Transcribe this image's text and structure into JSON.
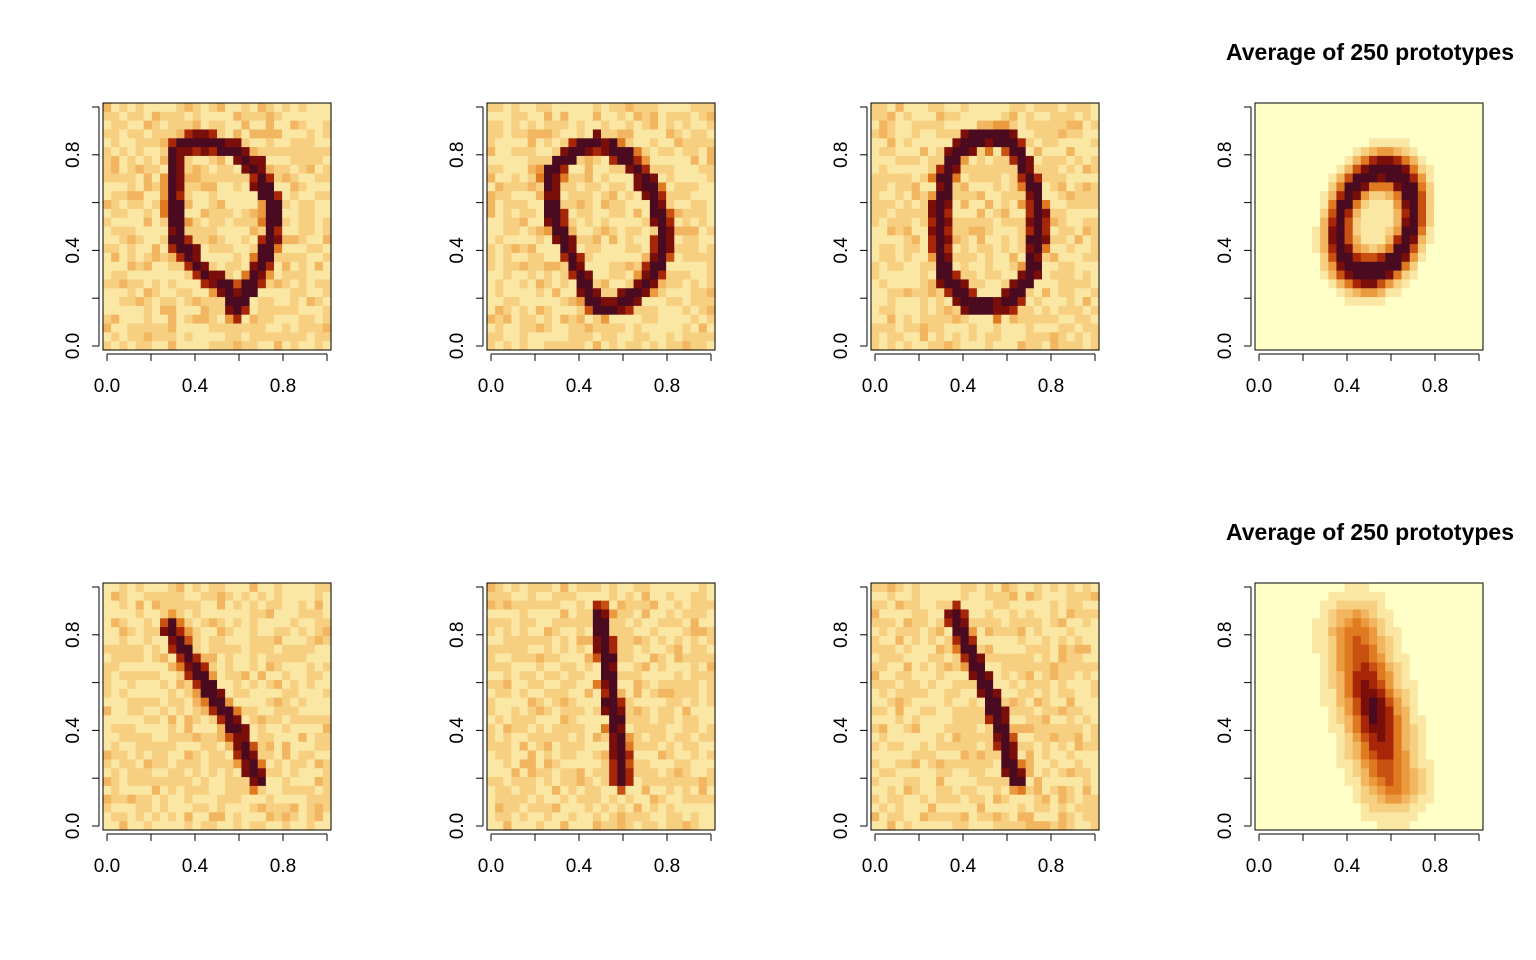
{
  "figure": {
    "palette": [
      "#FFFFC8",
      "#FBE7A4",
      "#F7CF80",
      "#F2B560",
      "#EC9A3E",
      "#E07A21",
      "#C85010",
      "#A82608",
      "#7A0E0A",
      "#4A0A20"
    ]
  },
  "chart_data": [
    {
      "id": "r1c1",
      "type": "heatmap",
      "title": "",
      "digit": "0",
      "shape": "loop",
      "smooth": false,
      "xlim": [
        0,
        1
      ],
      "ylim": [
        0,
        1
      ],
      "xticks": [
        "0.0",
        "0.4",
        "0.8"
      ],
      "yticks": [
        "0.0",
        "0.4",
        "0.8"
      ],
      "stroke": [
        [
          0.32,
          0.82
        ],
        [
          0.42,
          0.85
        ],
        [
          0.55,
          0.82
        ],
        [
          0.66,
          0.75
        ],
        [
          0.74,
          0.6
        ],
        [
          0.74,
          0.47
        ],
        [
          0.7,
          0.35
        ],
        [
          0.64,
          0.24
        ],
        [
          0.58,
          0.16
        ],
        [
          0.58,
          0.22
        ],
        [
          0.54,
          0.26
        ],
        [
          0.46,
          0.3
        ],
        [
          0.4,
          0.36
        ],
        [
          0.33,
          0.44
        ],
        [
          0.31,
          0.6
        ],
        [
          0.32,
          0.82
        ]
      ]
    },
    {
      "id": "r1c2",
      "type": "heatmap",
      "title": "",
      "digit": "0",
      "shape": "loop",
      "smooth": false,
      "xlim": [
        0,
        1
      ],
      "ylim": [
        0,
        1
      ],
      "xticks": [
        "0.0",
        "0.4",
        "0.8"
      ],
      "yticks": [
        "0.0",
        "0.4",
        "0.8"
      ],
      "stroke": [
        [
          0.36,
          0.8
        ],
        [
          0.48,
          0.84
        ],
        [
          0.62,
          0.78
        ],
        [
          0.72,
          0.65
        ],
        [
          0.78,
          0.5
        ],
        [
          0.76,
          0.36
        ],
        [
          0.68,
          0.24
        ],
        [
          0.56,
          0.17
        ],
        [
          0.48,
          0.18
        ],
        [
          0.41,
          0.3
        ],
        [
          0.34,
          0.44
        ],
        [
          0.28,
          0.6
        ],
        [
          0.28,
          0.7
        ],
        [
          0.36,
          0.8
        ]
      ]
    },
    {
      "id": "r1c3",
      "type": "heatmap",
      "title": "",
      "digit": "0",
      "shape": "loop",
      "smooth": false,
      "xlim": [
        0,
        1
      ],
      "ylim": [
        0,
        1
      ],
      "xticks": [
        "0.0",
        "0.4",
        "0.8"
      ],
      "yticks": [
        "0.0",
        "0.4",
        "0.8"
      ],
      "stroke": [
        [
          0.4,
          0.84
        ],
        [
          0.6,
          0.86
        ],
        [
          0.7,
          0.7
        ],
        [
          0.74,
          0.5
        ],
        [
          0.7,
          0.3
        ],
        [
          0.58,
          0.17
        ],
        [
          0.44,
          0.18
        ],
        [
          0.32,
          0.3
        ],
        [
          0.3,
          0.5
        ],
        [
          0.32,
          0.7
        ],
        [
          0.4,
          0.84
        ]
      ]
    },
    {
      "id": "r1c4",
      "type": "heatmap",
      "title": "Average of 250 prototypes",
      "digit": "0",
      "shape": "ellipse",
      "smooth": true,
      "xlim": [
        0,
        1
      ],
      "ylim": [
        0,
        1
      ],
      "xticks": [
        "0.0",
        "0.4",
        "0.8"
      ],
      "yticks": [
        "0.0",
        "0.4",
        "0.8"
      ],
      "ellipse": {
        "cx": 0.53,
        "cy": 0.52,
        "rx": 0.2,
        "ry": 0.28,
        "angle": -20
      }
    },
    {
      "id": "r2c1",
      "type": "heatmap",
      "title": "",
      "digit": "1",
      "shape": "stroke",
      "smooth": false,
      "xlim": [
        0,
        1
      ],
      "ylim": [
        0,
        1
      ],
      "xticks": [
        "0.0",
        "0.4",
        "0.8"
      ],
      "yticks": [
        "0.0",
        "0.4",
        "0.8"
      ],
      "stroke": [
        [
          0.3,
          0.82
        ],
        [
          0.38,
          0.68
        ],
        [
          0.5,
          0.52
        ],
        [
          0.6,
          0.38
        ],
        [
          0.68,
          0.2
        ]
      ]
    },
    {
      "id": "r2c2",
      "type": "heatmap",
      "title": "",
      "digit": "1",
      "shape": "stroke",
      "smooth": false,
      "xlim": [
        0,
        1
      ],
      "ylim": [
        0,
        1
      ],
      "xticks": [
        "0.0",
        "0.4",
        "0.8"
      ],
      "yticks": [
        "0.0",
        "0.4",
        "0.8"
      ],
      "stroke": [
        [
          0.5,
          0.88
        ],
        [
          0.52,
          0.7
        ],
        [
          0.55,
          0.5
        ],
        [
          0.58,
          0.35
        ],
        [
          0.59,
          0.2
        ]
      ]
    },
    {
      "id": "r2c3",
      "type": "heatmap",
      "title": "",
      "digit": "1",
      "shape": "stroke",
      "smooth": false,
      "xlim": [
        0,
        1
      ],
      "ylim": [
        0,
        1
      ],
      "xticks": [
        "0.0",
        "0.4",
        "0.8"
      ],
      "yticks": [
        "0.0",
        "0.4",
        "0.8"
      ],
      "stroke": [
        [
          0.37,
          0.87
        ],
        [
          0.44,
          0.7
        ],
        [
          0.52,
          0.55
        ],
        [
          0.58,
          0.4
        ],
        [
          0.62,
          0.25
        ],
        [
          0.64,
          0.2
        ]
      ]
    },
    {
      "id": "r2c4",
      "type": "heatmap",
      "title": "Average of 250 prototypes",
      "digit": "1",
      "shape": "stroke",
      "smooth": true,
      "xlim": [
        0,
        1
      ],
      "ylim": [
        0,
        1
      ],
      "xticks": [
        "0.0",
        "0.4",
        "0.8"
      ],
      "yticks": [
        "0.0",
        "0.4",
        "0.8"
      ],
      "stroke": [
        [
          0.44,
          0.82
        ],
        [
          0.49,
          0.6
        ],
        [
          0.53,
          0.45
        ],
        [
          0.56,
          0.3
        ],
        [
          0.6,
          0.18
        ]
      ]
    }
  ]
}
